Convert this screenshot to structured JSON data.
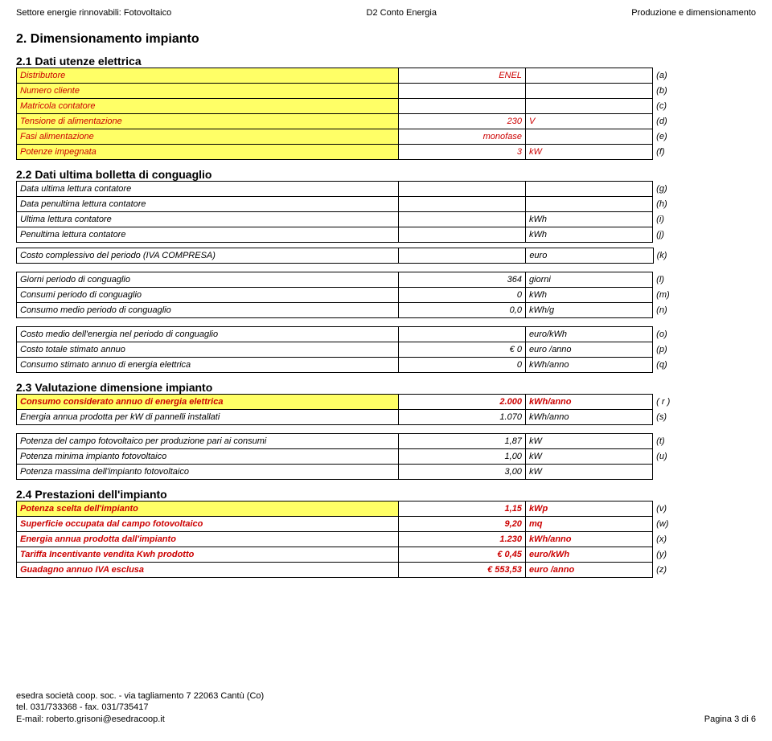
{
  "header": {
    "left": "Settore energie rinnovabili: Fotovoltaico",
    "center": "D2 Conto Energia",
    "right": "Produzione e dimensionamento"
  },
  "s2": {
    "title": "2. Dimensionamento impianto"
  },
  "s21": {
    "title": "2.1 Dati utenze elettrica",
    "rows": [
      {
        "label": "Distributore",
        "v1": "ENEL",
        "v2": "",
        "ref": "(a)",
        "yellow": true,
        "red": true
      },
      {
        "label": "Numero cliente",
        "v1": "",
        "v2": "",
        "ref": "(b)",
        "yellow": true,
        "red": true
      },
      {
        "label": "Matricola contatore",
        "v1": "",
        "v2": "",
        "ref": "(c)",
        "yellow": true,
        "red": true
      },
      {
        "label": "Tensione di alimentazione",
        "v1": "230",
        "v2": "V",
        "ref": "(d)",
        "yellow": true,
        "red": true
      },
      {
        "label": "Fasi alimentazione",
        "v1": "monofase",
        "v2": "",
        "ref": "(e)",
        "yellow": true,
        "red": true
      },
      {
        "label": "Potenze impegnata",
        "v1": "3",
        "v2": "kW",
        "ref": "(f)",
        "yellow": true,
        "red": true
      }
    ]
  },
  "s22": {
    "title": "2.2 Dati ultima bolletta di conguaglio",
    "rows1": [
      {
        "label": "Data ultima lettura contatore",
        "v1": "",
        "v2": "",
        "ref": "(g)"
      },
      {
        "label": "Data penultima lettura contatore",
        "v1": "",
        "v2": "",
        "ref": "(h)"
      },
      {
        "label": "Ultima lettura contatore",
        "v1": "",
        "v2": "kWh",
        "ref": "(i)"
      },
      {
        "label": "Penultima lettura contatore",
        "v1": "",
        "v2": "kWh",
        "ref": "(j)"
      }
    ],
    "row_cost": {
      "label": "Costo complessivo del periodo (IVA COMPRESA)",
      "v1": "",
      "v2": "euro",
      "ref": "(k)"
    },
    "rows2": [
      {
        "label": "Giorni periodo di conguaglio",
        "v1": "364",
        "v2": "giorni",
        "ref": "(l)"
      },
      {
        "label": "Consumi periodo di conguaglio",
        "v1": "0",
        "v2": "kWh",
        "ref": "(m)"
      },
      {
        "label": "Consumo medio periodo di conguaglio",
        "v1": "0,0",
        "v2": "kWh/g",
        "ref": "(n)"
      }
    ],
    "rows3": [
      {
        "label": "Costo medio dell'energia nel periodo di conguaglio",
        "v1": "",
        "v2": "euro/kWh",
        "ref": "(o)"
      },
      {
        "label": "Costo totale stimato annuo",
        "v1": "€ 0",
        "v2": "euro /anno",
        "ref": "(p)"
      },
      {
        "label": "Consumo stimato annuo di energia elettrica",
        "v1": "0",
        "v2": "kWh/anno",
        "ref": "(q)"
      }
    ]
  },
  "s23": {
    "title": "2.3 Valutazione dimensione impianto",
    "rows1": [
      {
        "label": "Consumo considerato annuo di energia elettrica",
        "v1": "2.000",
        "v2": "kWh/anno",
        "ref": "( r )",
        "yellow": true,
        "red": true,
        "bold": true
      },
      {
        "label": "Energia annua prodotta per kW di pannelli installati",
        "v1": "1.070",
        "v2": "kWh/anno",
        "ref": "(s)"
      }
    ],
    "rows2": [
      {
        "label": "Potenza del campo fotovoltaico per produzione pari ai consumi",
        "v1": "1,87",
        "v2": "kW",
        "ref": "(t)"
      },
      {
        "label": "Potenza minima impianto fotovoltaico",
        "v1": "1,00",
        "v2": "kW",
        "ref": "(u)"
      },
      {
        "label": "Potenza massima dell'impianto fotovoltaico",
        "v1": "3,00",
        "v2": "kW",
        "ref": ""
      }
    ]
  },
  "s24": {
    "title": "2.4 Prestazioni dell'impianto",
    "rows": [
      {
        "label": "Potenza scelta dell'impianto",
        "v1": "1,15",
        "v2": "kWp",
        "ref": "(v)",
        "yellow": true,
        "red": true,
        "bold": true
      },
      {
        "label": "Superficie occupata dal campo fotovoltaico",
        "v1": "9,20",
        "v2": "mq",
        "ref": "(w)",
        "red": true,
        "bold": true
      },
      {
        "label": "Energia annua prodotta dall'impianto",
        "v1": "1.230",
        "v2": "kWh/anno",
        "ref": "(x)",
        "red": true,
        "bold": true
      },
      {
        "label": "Tariffa Incentivante vendita Kwh prodotto",
        "v1": "€ 0,45",
        "v2": "euro/kWh",
        "ref": "(y)",
        "red": true,
        "bold": true
      },
      {
        "label": "Guadagno annuo IVA esclusa",
        "v1": "€ 553,53",
        "v2": "euro /anno",
        "ref": "(z)",
        "red": true,
        "bold": true
      }
    ]
  },
  "footer": {
    "l1": "esedra società coop. soc. - via tagliamento 7 22063 Cantù (Co)",
    "l2": "tel. 031/733368 - fax. 031/735417",
    "l3": "E-mail: roberto.grisoni@esedracoop.it",
    "page": "Pagina 3 di 6"
  }
}
